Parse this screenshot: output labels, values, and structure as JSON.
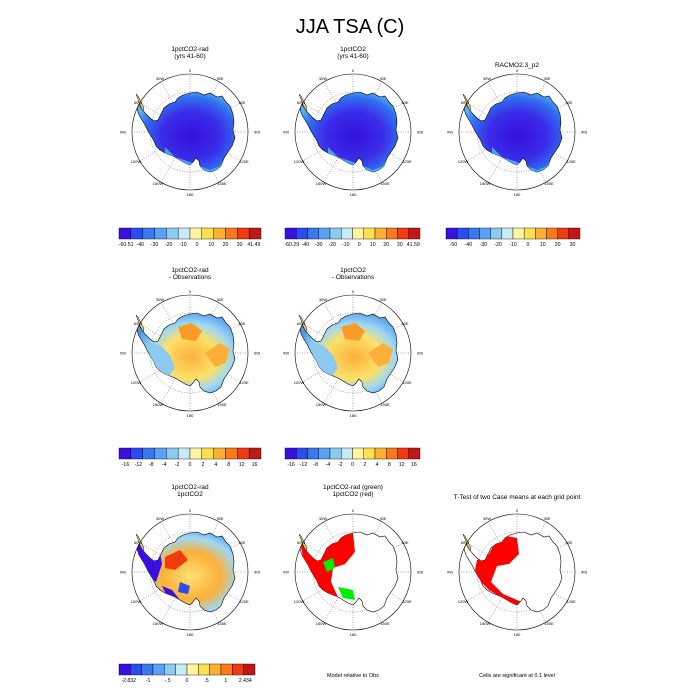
{
  "chart_data": {
    "type": "heatmap",
    "title": "JJA TSA (C)",
    "panels": [
      {
        "title": [
          "1pctCO2-rad",
          "(yrs 41-60)"
        ],
        "field": "abs_cold",
        "colorbar": {
          "colors": [
            "#3a10e0",
            "#2c4cf0",
            "#3a78f0",
            "#5aa2f5",
            "#8ccaf0",
            "#c8ecf5",
            "#fff5a0",
            "#fde050",
            "#fdb030",
            "#fb7a18",
            "#f03a10",
            "#c01818"
          ],
          "ticks": [
            "-60.51",
            "-40",
            "-30",
            "-20",
            "-10",
            "0",
            "10",
            "20",
            "30",
            "41.49"
          ]
        }
      },
      {
        "title": [
          "1pctCO2",
          "(yrs 41-60)"
        ],
        "field": "abs_cold",
        "colorbar": {
          "colors": [
            "#3a10e0",
            "#2c4cf0",
            "#3a78f0",
            "#5aa2f5",
            "#8ccaf0",
            "#c8ecf5",
            "#fff5a0",
            "#fde050",
            "#fdb030",
            "#fb7a18",
            "#f03a10",
            "#c01818"
          ],
          "ticks": [
            "-60.29",
            "-40",
            "-30",
            "-20",
            "-10",
            "0",
            "10",
            "20",
            "30",
            "41.59"
          ]
        }
      },
      {
        "title": [
          "RACMO2.3_p2"
        ],
        "field": "abs_cold",
        "colorbar": {
          "colors": [
            "#3a10e0",
            "#2c4cf0",
            "#3a78f0",
            "#5aa2f5",
            "#8ccaf0",
            "#c8ecf5",
            "#fff5a0",
            "#fde050",
            "#fdb030",
            "#fb7a18",
            "#f03a10",
            "#c01818"
          ],
          "ticks": [
            "-50",
            "-40",
            "-30",
            "-20",
            "-10",
            "0",
            "10",
            "20",
            "30"
          ]
        }
      },
      {
        "title": [
          "1pctCO2-rad",
          "- Observations"
        ],
        "field": "diff_warm",
        "colorbar": {
          "colors": [
            "#3a10e0",
            "#2c4cf0",
            "#3a78f0",
            "#5aa2f5",
            "#8ccaf0",
            "#c8ecf5",
            "#fff5a0",
            "#fde050",
            "#fdb030",
            "#fb7a18",
            "#f03a10",
            "#c01818"
          ],
          "ticks": [
            "-16",
            "-12",
            "-8",
            "-4",
            "-2",
            "0",
            "2",
            "4",
            "8",
            "12",
            "16"
          ]
        }
      },
      {
        "title": [
          "1pctCO2",
          "- Observations"
        ],
        "field": "diff_warm",
        "colorbar": {
          "colors": [
            "#3a10e0",
            "#2c4cf0",
            "#3a78f0",
            "#5aa2f5",
            "#8ccaf0",
            "#c8ecf5",
            "#fff5a0",
            "#fde050",
            "#fdb030",
            "#fb7a18",
            "#f03a10",
            "#c01818"
          ],
          "ticks": [
            "-16",
            "-12",
            "-8",
            "-4",
            "-2",
            "0",
            "2",
            "4",
            "8",
            "12",
            "16"
          ]
        }
      },
      {
        "title": [
          "1pctCO2-rad",
          "1pctCO2"
        ],
        "field": "model_diff",
        "colorbar": {
          "colors": [
            "#3a10e0",
            "#2c4cf0",
            "#3a78f0",
            "#5aa2f5",
            "#8ccaf0",
            "#c8ecf5",
            "#fff5a0",
            "#fde050",
            "#fdb030",
            "#fb7a18",
            "#f03a10",
            "#c01818"
          ],
          "ticks": [
            "-2.832",
            "-1",
            "-.5",
            "0",
            ".5",
            "1",
            "2.434"
          ]
        }
      },
      {
        "title": [
          "1pctCO2-rad (green)",
          "1pctCO2 (red)"
        ],
        "field": "rel_obs",
        "note": "Model relative to Obs"
      },
      {
        "title": [
          "T-Test of two Case means at each grid point"
        ],
        "field": "ttest",
        "note": "Cells are significant at 0.1 level"
      }
    ],
    "map_labels": {
      "top": "0",
      "bottom": "180",
      "left": "90W",
      "right": "90E",
      "ul1": "30W",
      "ul2": "60W",
      "ur1": "30E",
      "ur2": "60E",
      "ll1": "120W",
      "ll2": "150W",
      "lr1": "120E",
      "lr2": "150E"
    }
  }
}
